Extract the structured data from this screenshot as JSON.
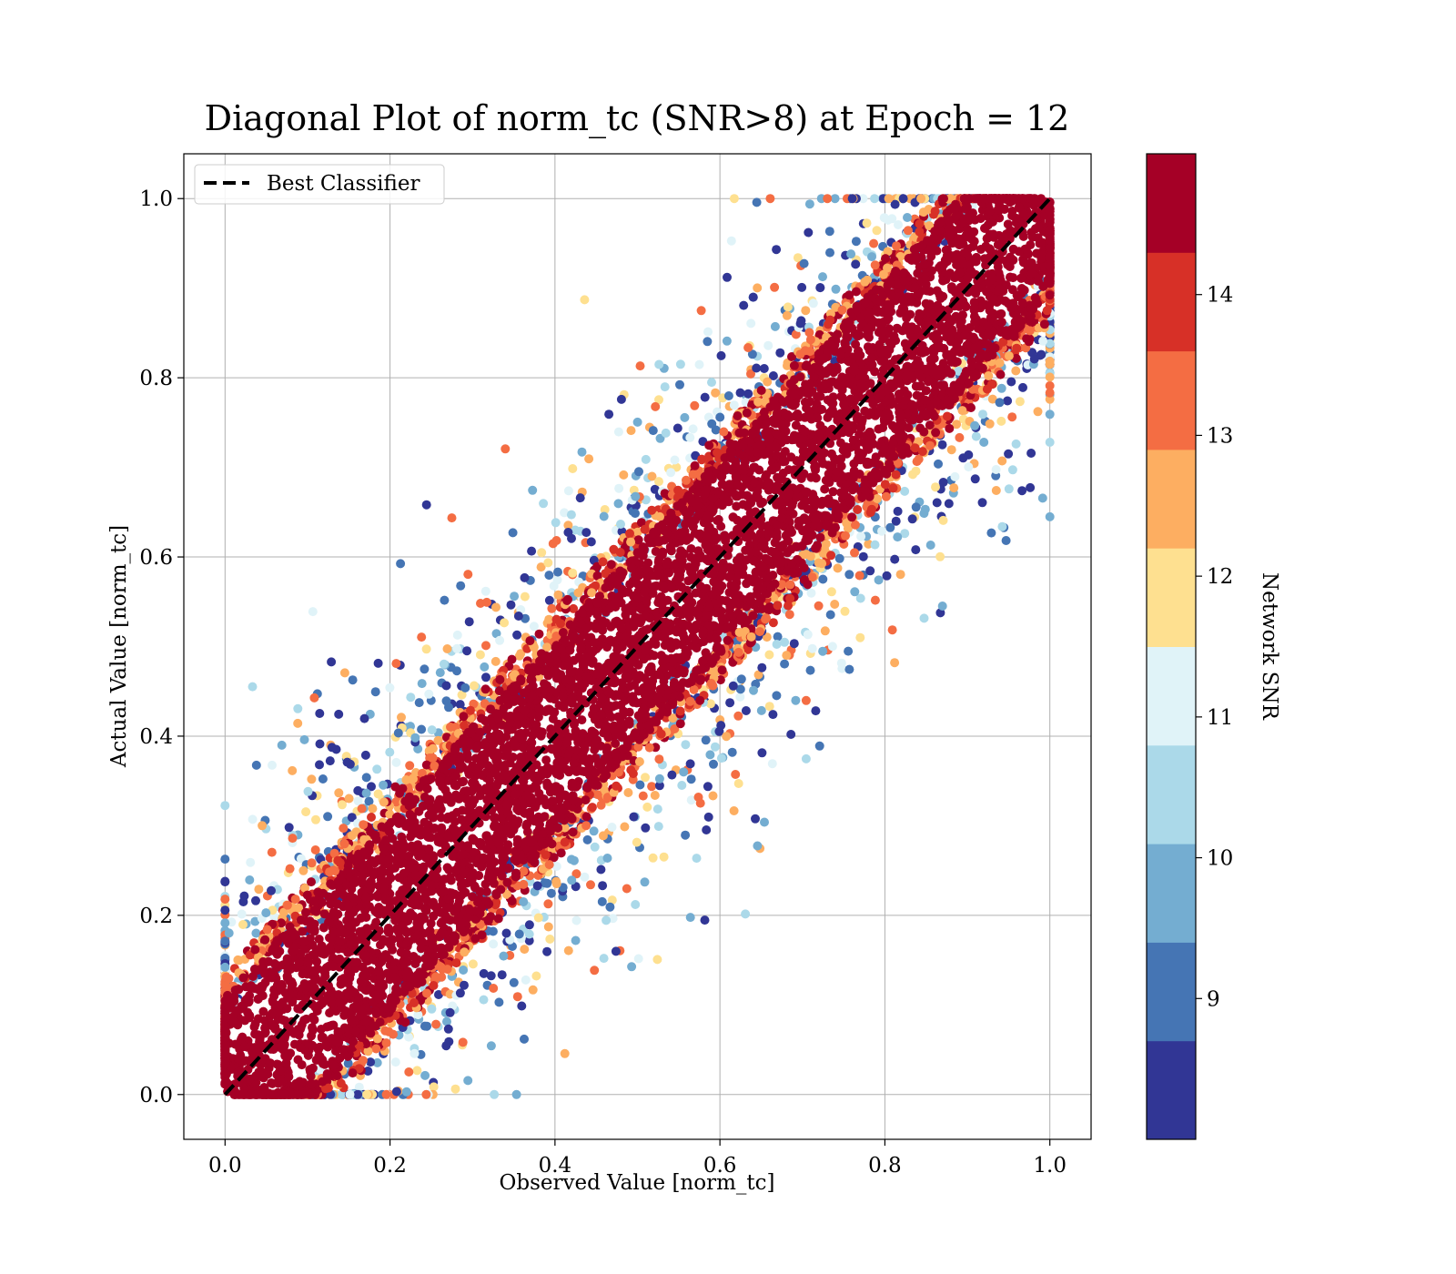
{
  "chart_data": {
    "type": "scatter",
    "title": "Diagonal Plot of norm_tc (SNR>8) at Epoch = 12",
    "xlabel": "Observed Value [norm_tc]",
    "ylabel": "Actual Value [norm_tc]",
    "xlim": [
      -0.05,
      1.05
    ],
    "ylim": [
      -0.05,
      1.05
    ],
    "xticks": [
      "0.0",
      "0.2",
      "0.4",
      "0.6",
      "0.8",
      "1.0"
    ],
    "yticks": [
      "0.0",
      "0.2",
      "0.4",
      "0.6",
      "0.8",
      "1.0"
    ],
    "grid": true,
    "legend": {
      "position": "top-left",
      "entries": [
        {
          "label": "Best Classifier",
          "style": "dashed",
          "color": "#000000"
        }
      ]
    },
    "reference_line": {
      "from": [
        0,
        0
      ],
      "to": [
        1,
        1
      ]
    },
    "colorbar": {
      "label": "Network SNR",
      "ticks": [
        "9",
        "10",
        "11",
        "12",
        "13",
        "14"
      ],
      "range": [
        8,
        15
      ],
      "colors": [
        "#313695",
        "#4575b4",
        "#74add1",
        "#abd9e9",
        "#e0f3f8",
        "#fee090",
        "#fdae61",
        "#f46d43",
        "#d73027",
        "#a50026"
      ]
    },
    "scatter_summary": {
      "description": "Dense band of high-SNR (dark red) points along y = x; lower-SNR (blue/yellow) points scatter further from the diagonal.",
      "band_halfwidth": 0.08
    }
  }
}
